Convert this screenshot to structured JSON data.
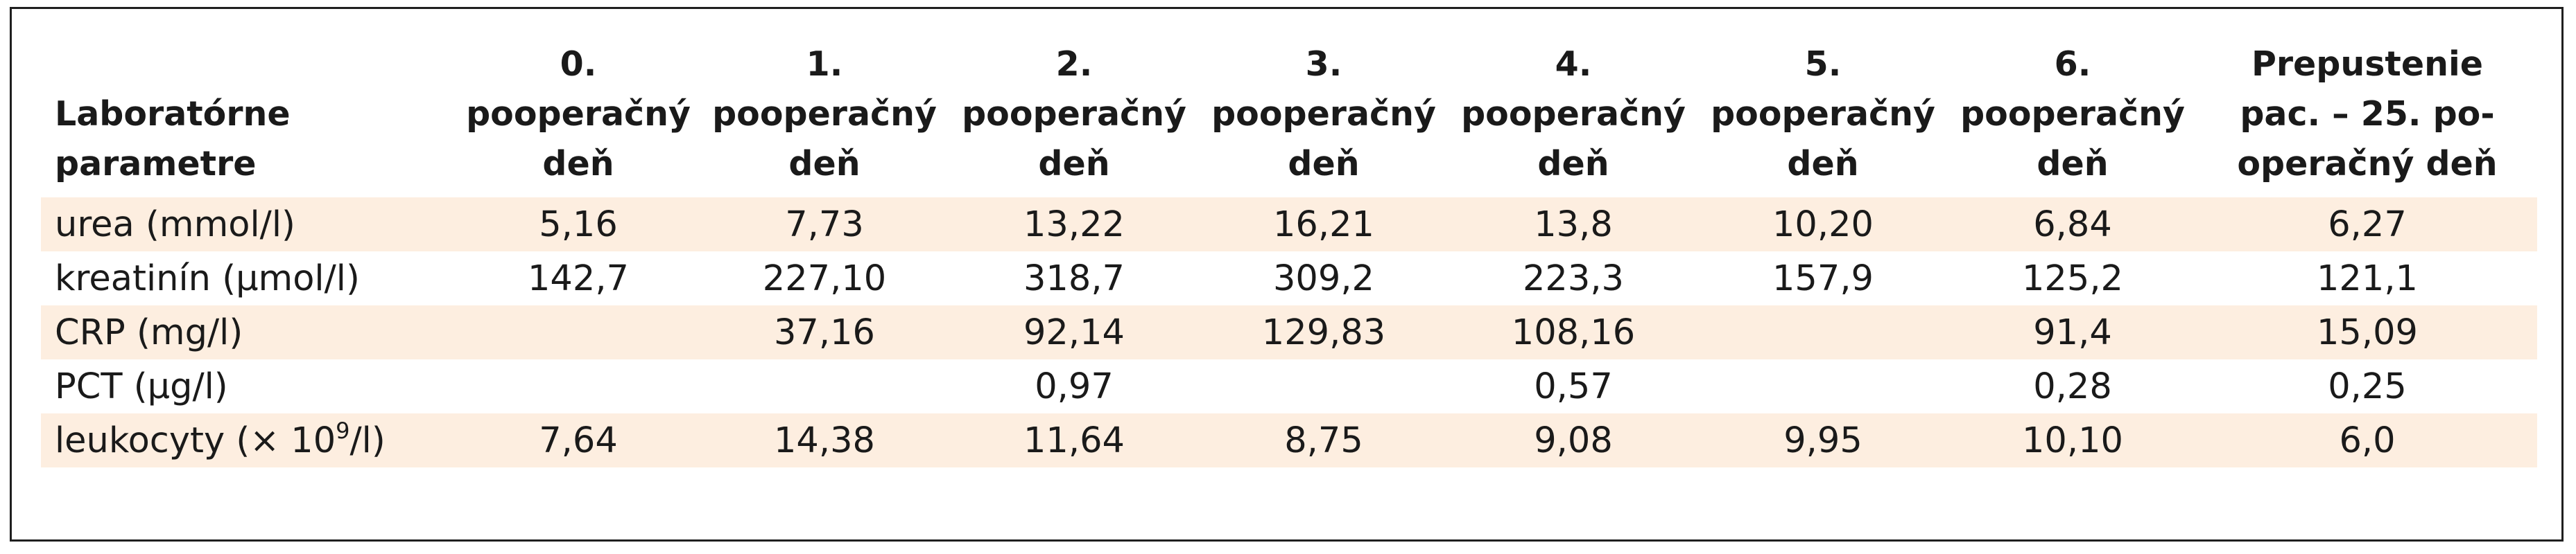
{
  "table": {
    "header": [
      [
        "Laboratórne",
        "parametre"
      ],
      [
        "0.",
        "pooperačný",
        "deň"
      ],
      [
        "1.",
        "pooperačný",
        "deň"
      ],
      [
        "2.",
        "pooperačný",
        "deň"
      ],
      [
        "3.",
        "pooperačný",
        "deň"
      ],
      [
        "4.",
        "pooperačný",
        "deň"
      ],
      [
        "5.",
        "pooperačný",
        "deň"
      ],
      [
        "6.",
        "pooperačný",
        "deň"
      ],
      [
        "Prepustenie",
        "pac. – 25. po-",
        "operačný deň"
      ]
    ],
    "rows": [
      {
        "label": "urea (mmol/l)",
        "values": [
          "5,16",
          "7,73",
          "13,22",
          "16,21",
          "13,8",
          "10,20",
          "6,84",
          "6,27"
        ]
      },
      {
        "label": "kreatinín (µmol/l)",
        "values": [
          "142,7",
          "227,10",
          "318,7",
          "309,2",
          "223,3",
          "157,9",
          "125,2",
          "121,1"
        ]
      },
      {
        "label": "CRP (mg/l)",
        "values": [
          "",
          "37,16",
          "92,14",
          "129,83",
          "108,16",
          "",
          "91,4",
          "15,09"
        ]
      },
      {
        "label": "PCT (µg/l)",
        "values": [
          "",
          "",
          "0,97",
          "",
          "0,57",
          "",
          "0,28",
          "0,25"
        ]
      },
      {
        "label_prefix": "leukocyty (× 10",
        "label_exp": "9",
        "label_suffix": "/l)",
        "values": [
          "7,64",
          "14,38",
          "11,64",
          "8,75",
          "9,08",
          "9,95",
          "10,10",
          "6,0"
        ]
      }
    ]
  },
  "colors": {
    "shaded_row": "#fdeee0",
    "border": "#1f1f1f"
  }
}
